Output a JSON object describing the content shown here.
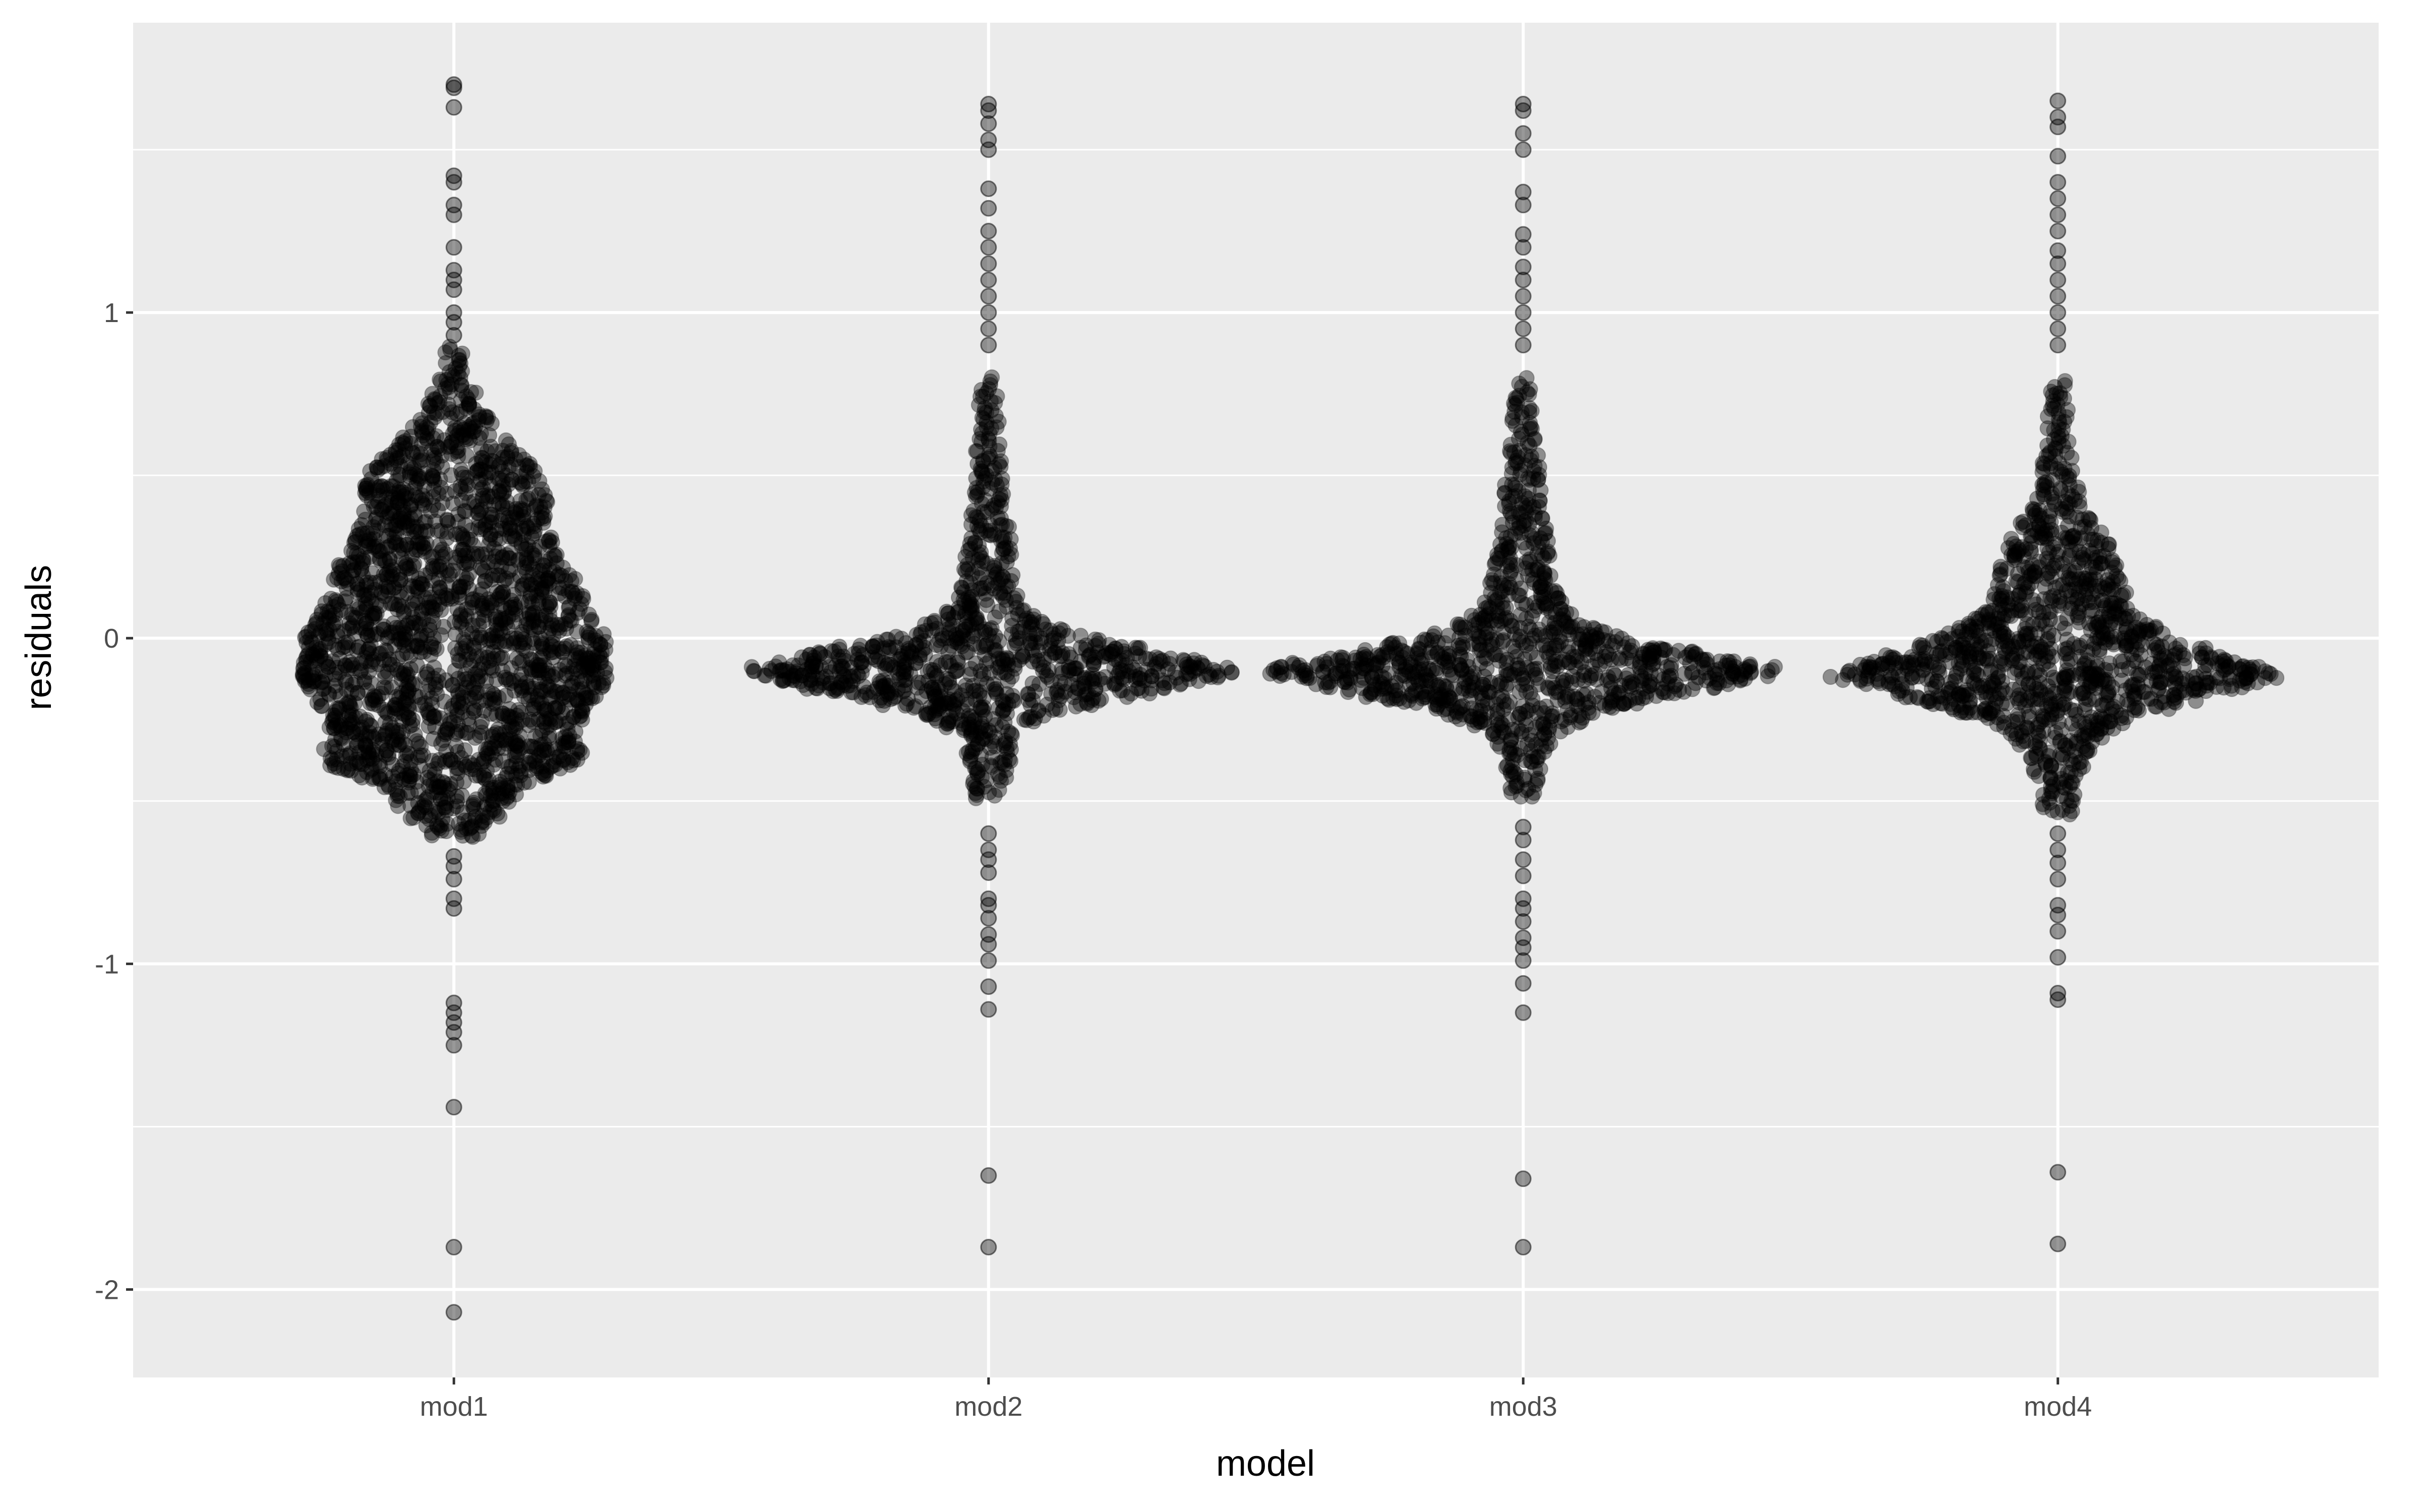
{
  "chart_data": {
    "type": "scatter",
    "subtype": "beeswarm",
    "title": "",
    "xlabel": "model",
    "ylabel": "residuals",
    "categories": [
      "mod1",
      "mod2",
      "mod3",
      "mod4"
    ],
    "ylim": [
      -2.27,
      1.89
    ],
    "yticks": [
      -2,
      -1,
      0,
      1
    ],
    "ytick_labels": [
      "-2",
      "-1",
      "0",
      "1"
    ],
    "grid": true,
    "legend": "none",
    "colors": {
      "panel": "#ebebeb",
      "grid": "#ffffff",
      "point": "#000000",
      "text": "#4d4d4d"
    },
    "point_opacity": 0.4,
    "series": [
      {
        "category": "mod1",
        "density_profile": [
          [
            -0.62,
            0.08
          ],
          [
            -0.55,
            0.18
          ],
          [
            -0.45,
            0.3
          ],
          [
            -0.38,
            0.55
          ],
          [
            -0.3,
            0.48
          ],
          [
            -0.2,
            0.55
          ],
          [
            -0.12,
            0.62
          ],
          [
            -0.05,
            0.6
          ],
          [
            0.0,
            0.62
          ],
          [
            0.05,
            0.55
          ],
          [
            0.12,
            0.52
          ],
          [
            0.2,
            0.48
          ],
          [
            0.3,
            0.4
          ],
          [
            0.4,
            0.38
          ],
          [
            0.5,
            0.35
          ],
          [
            0.6,
            0.22
          ],
          [
            0.7,
            0.12
          ],
          [
            0.8,
            0.06
          ],
          [
            0.9,
            0.03
          ]
        ],
        "outliers": [
          1.7,
          1.69,
          1.63,
          1.42,
          1.4,
          1.33,
          1.3,
          1.2,
          1.13,
          1.1,
          1.07,
          1.0,
          0.97,
          0.93,
          -0.67,
          -0.7,
          -0.74,
          -0.8,
          -0.83,
          -1.12,
          -1.15,
          -1.18,
          -1.21,
          -1.25,
          -1.44,
          -1.87,
          -2.07
        ]
      },
      {
        "category": "mod2",
        "density_profile": [
          [
            -0.5,
            0.05
          ],
          [
            -0.4,
            0.08
          ],
          [
            -0.3,
            0.12
          ],
          [
            -0.22,
            0.3
          ],
          [
            -0.15,
            0.75
          ],
          [
            -0.1,
            1.0
          ],
          [
            -0.05,
            0.72
          ],
          [
            0.0,
            0.4
          ],
          [
            0.05,
            0.22
          ],
          [
            0.1,
            0.14
          ],
          [
            0.2,
            0.1
          ],
          [
            0.3,
            0.09
          ],
          [
            0.4,
            0.07
          ],
          [
            0.5,
            0.06
          ],
          [
            0.6,
            0.05
          ],
          [
            0.7,
            0.04
          ],
          [
            0.8,
            0.03
          ]
        ],
        "outliers": [
          1.64,
          1.62,
          1.58,
          1.53,
          1.5,
          1.38,
          1.32,
          1.25,
          1.2,
          1.15,
          1.1,
          1.05,
          1.0,
          0.95,
          0.9,
          -0.6,
          -0.65,
          -0.68,
          -0.72,
          -0.8,
          -0.82,
          -0.86,
          -0.91,
          -0.94,
          -0.99,
          -1.07,
          -1.14,
          -1.65,
          -1.87
        ]
      },
      {
        "category": "mod3",
        "density_profile": [
          [
            -0.5,
            0.05
          ],
          [
            -0.4,
            0.07
          ],
          [
            -0.3,
            0.12
          ],
          [
            -0.22,
            0.35
          ],
          [
            -0.15,
            0.8
          ],
          [
            -0.1,
            1.06
          ],
          [
            -0.05,
            0.75
          ],
          [
            0.0,
            0.42
          ],
          [
            0.05,
            0.24
          ],
          [
            0.1,
            0.16
          ],
          [
            0.2,
            0.12
          ],
          [
            0.3,
            0.1
          ],
          [
            0.4,
            0.08
          ],
          [
            0.5,
            0.07
          ],
          [
            0.6,
            0.05
          ],
          [
            0.7,
            0.04
          ],
          [
            0.8,
            0.03
          ]
        ],
        "outliers": [
          1.64,
          1.62,
          1.55,
          1.5,
          1.37,
          1.33,
          1.24,
          1.2,
          1.14,
          1.1,
          1.05,
          1.0,
          0.95,
          0.9,
          -0.58,
          -0.62,
          -0.68,
          -0.73,
          -0.8,
          -0.83,
          -0.87,
          -0.92,
          -0.95,
          -0.99,
          -1.06,
          -1.15,
          -1.66,
          -1.87
        ]
      },
      {
        "category": "mod4",
        "density_profile": [
          [
            -0.55,
            0.05
          ],
          [
            -0.45,
            0.08
          ],
          [
            -0.35,
            0.12
          ],
          [
            -0.25,
            0.28
          ],
          [
            -0.18,
            0.6
          ],
          [
            -0.12,
            0.92
          ],
          [
            -0.08,
            0.78
          ],
          [
            -0.02,
            0.55
          ],
          [
            0.05,
            0.36
          ],
          [
            0.12,
            0.28
          ],
          [
            0.2,
            0.24
          ],
          [
            0.3,
            0.2
          ],
          [
            0.4,
            0.1
          ],
          [
            0.5,
            0.07
          ],
          [
            0.6,
            0.05
          ],
          [
            0.7,
            0.04
          ],
          [
            0.8,
            0.03
          ]
        ],
        "outliers": [
          1.65,
          1.6,
          1.57,
          1.48,
          1.4,
          1.35,
          1.3,
          1.25,
          1.19,
          1.15,
          1.1,
          1.05,
          1.0,
          0.95,
          0.9,
          -0.6,
          -0.65,
          -0.69,
          -0.74,
          -0.82,
          -0.85,
          -0.9,
          -0.98,
          -1.09,
          -1.11,
          -1.64,
          -1.86
        ]
      }
    ]
  }
}
